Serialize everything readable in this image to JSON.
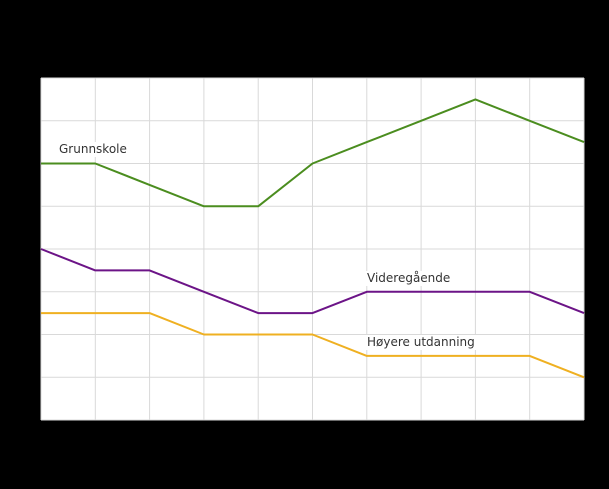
{
  "chart_data": {
    "type": "line",
    "title": "",
    "xlabel": "",
    "ylabel": "",
    "x": [
      1,
      2,
      3,
      4,
      5,
      6,
      7,
      8,
      9,
      10,
      11
    ],
    "ylim": [
      0,
      8
    ],
    "yticks": [
      0,
      1,
      2,
      3,
      4,
      5,
      6,
      7,
      8
    ],
    "grid": true,
    "legend": "inline-labels",
    "series": [
      {
        "name": "Grunnskole",
        "color": "#4b8d1f",
        "values": [
          6,
          6,
          5.5,
          5,
          5,
          6,
          6.5,
          7,
          7.5,
          7,
          6.5
        ]
      },
      {
        "name": "Videregående",
        "color": "#6c1487",
        "values": [
          4,
          3.5,
          3.5,
          3,
          2.5,
          2.5,
          3,
          3,
          3,
          3,
          2.5
        ]
      },
      {
        "name": "Høyere utdanning",
        "color": "#efb021",
        "values": [
          2.5,
          2.5,
          2.5,
          2,
          2,
          2,
          1.5,
          1.5,
          1.5,
          1.5,
          1
        ]
      }
    ]
  },
  "labels": {
    "grunnskole": "Grunnskole",
    "videregaende": "Videregående",
    "hoyere": "Høyere utdanning"
  },
  "colors": {
    "background": "#000000",
    "plot_background": "#ffffff",
    "grid": "#d9d9d9"
  }
}
